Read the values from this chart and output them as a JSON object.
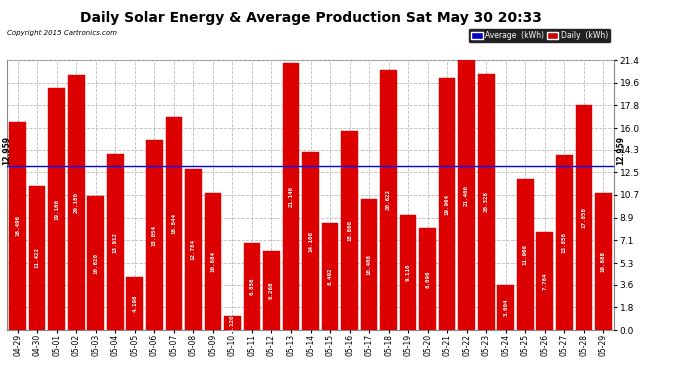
{
  "title": "Daily Solar Energy & Average Production Sat May 30 20:33",
  "copyright": "Copyright 2015 Cartronics.com",
  "categories": [
    "04-29",
    "04-30",
    "05-01",
    "05-02",
    "05-03",
    "05-04",
    "05-05",
    "05-06",
    "05-07",
    "05-08",
    "05-09",
    "05-10",
    "05-11",
    "05-12",
    "05-13",
    "05-14",
    "05-15",
    "05-16",
    "05-17",
    "05-18",
    "05-19",
    "05-20",
    "05-21",
    "05-22",
    "05-23",
    "05-24",
    "05-25",
    "05-26",
    "05-27",
    "05-28",
    "05-29"
  ],
  "values": [
    16.496,
    11.422,
    19.16,
    20.18,
    10.62,
    13.912,
    4.198,
    15.054,
    16.844,
    12.784,
    10.884,
    1.12,
    6.856,
    6.268,
    21.14,
    14.108,
    8.492,
    15.8,
    10.408,
    20.622,
    9.116,
    8.098,
    19.964,
    21.4,
    20.328,
    3.604,
    11.968,
    7.784,
    13.858,
    17.858,
    10.888
  ],
  "average": 12.959,
  "average_label": "12.959",
  "bar_color": "#dd0000",
  "avg_line_color": "#0000ff",
  "background_color": "#ffffff",
  "grid_color": "#bbbbbb",
  "title_fontsize": 10,
  "tick_label_fontsize": 5.5,
  "value_label_fontsize": 4.2,
  "ylim": [
    0.0,
    21.4
  ],
  "yticks": [
    0.0,
    1.8,
    3.6,
    5.3,
    7.1,
    8.9,
    10.7,
    12.5,
    14.3,
    16.0,
    17.8,
    19.6,
    21.4
  ],
  "legend_avg_color": "#0000cc",
  "legend_daily_color": "#cc0000"
}
